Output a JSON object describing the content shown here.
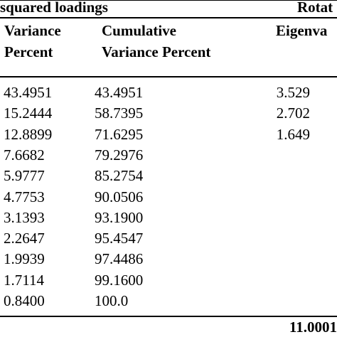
{
  "header": {
    "group_left": "squared loadings",
    "group_right": "Rotat",
    "col_variance": [
      "Variance",
      "Percent"
    ],
    "col_cumulative": [
      "Cumulative",
      "Variance Percent"
    ],
    "col_eigen": "Eigenva"
  },
  "rows": [
    {
      "variance": "43.4951",
      "cumulative": "43.4951",
      "eigen": "3.529"
    },
    {
      "variance": "15.2444",
      "cumulative": "58.7395",
      "eigen": "2.702"
    },
    {
      "variance": "12.8899",
      "cumulative": "71.6295",
      "eigen": "1.649"
    },
    {
      "variance": "7.6682",
      "cumulative": "79.2976",
      "eigen": ""
    },
    {
      "variance": "5.9777",
      "cumulative": "85.2754",
      "eigen": ""
    },
    {
      "variance": "4.7753",
      "cumulative": "90.0506",
      "eigen": ""
    },
    {
      "variance": "3.1393",
      "cumulative": "93.1900",
      "eigen": ""
    },
    {
      "variance": "2.2647",
      "cumulative": "95.4547",
      "eigen": ""
    },
    {
      "variance": "1.9939",
      "cumulative": "97.4486",
      "eigen": ""
    },
    {
      "variance": "1.7114",
      "cumulative": "99.1600",
      "eigen": ""
    },
    {
      "variance": "0.8400",
      "cumulative": "100.0",
      "eigen": ""
    }
  ],
  "total": {
    "eigen": "11.0001"
  }
}
